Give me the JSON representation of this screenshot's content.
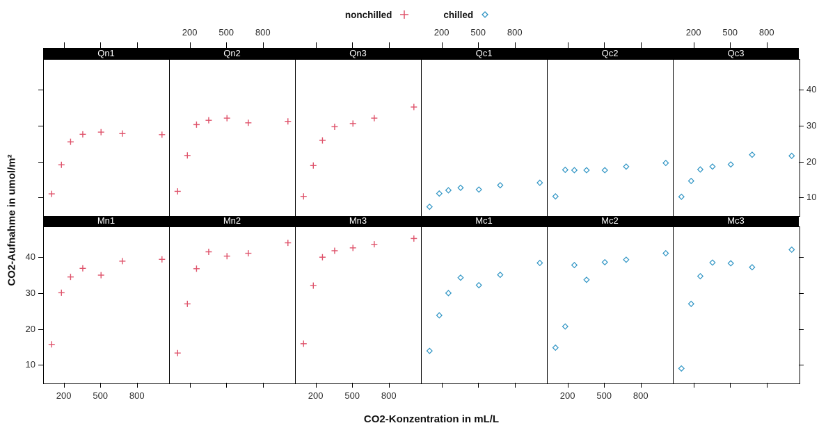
{
  "legend": {
    "items": [
      {
        "label": "nonchilled",
        "symbol": "plus",
        "color": "#DF536B"
      },
      {
        "label": "chilled",
        "symbol": "diamond",
        "color": "#2E94C4"
      }
    ]
  },
  "chart_data": {
    "type": "scatter",
    "title": "",
    "x_label": "CO2-Konzentration in mL/L",
    "y_label": "CO2-Aufnahme in umol/m²",
    "x_values": [
      95,
      175,
      250,
      350,
      500,
      675,
      1000
    ],
    "x_ticks": [
      200,
      500,
      800
    ],
    "y_ticks": [
      10,
      20,
      30,
      40
    ],
    "x_range": [
      30.6,
      1064
    ],
    "y_range": [
      5,
      48.6
    ],
    "grid": false,
    "legend_position": "top",
    "groups": {
      "nonchilled": {
        "symbol": "plus",
        "color": "#DF536B"
      },
      "chilled": {
        "symbol": "diamond",
        "color": "#2E94C4"
      }
    },
    "panels_top": [
      {
        "label": "Qn1",
        "group": "nonchilled",
        "uptake": [
          11.3,
          19.4,
          25.8,
          27.9,
          28.5,
          28.1,
          27.8
        ]
      },
      {
        "label": "Qn2",
        "group": "nonchilled",
        "uptake": [
          12.0,
          22.0,
          30.6,
          31.8,
          32.4,
          31.1,
          31.5
        ]
      },
      {
        "label": "Qn3",
        "group": "nonchilled",
        "uptake": [
          10.6,
          19.2,
          26.2,
          30.0,
          30.9,
          32.4,
          35.5
        ]
      },
      {
        "label": "Qc1",
        "group": "chilled",
        "uptake": [
          7.7,
          11.4,
          12.3,
          13.0,
          12.5,
          13.7,
          14.4
        ]
      },
      {
        "label": "Qc2",
        "group": "chilled",
        "uptake": [
          10.6,
          18.0,
          17.9,
          17.9,
          17.9,
          18.9,
          19.9
        ]
      },
      {
        "label": "Qc3",
        "group": "chilled",
        "uptake": [
          10.5,
          14.9,
          18.1,
          18.9,
          19.5,
          22.2,
          21.9
        ]
      }
    ],
    "panels_bottom": [
      {
        "label": "Mn1",
        "group": "nonchilled",
        "uptake": [
          16.0,
          30.4,
          34.8,
          37.2,
          35.3,
          39.2,
          39.7
        ]
      },
      {
        "label": "Mn2",
        "group": "nonchilled",
        "uptake": [
          13.6,
          27.3,
          37.1,
          41.8,
          40.6,
          41.4,
          44.3
        ]
      },
      {
        "label": "Mn3",
        "group": "nonchilled",
        "uptake": [
          16.2,
          32.4,
          40.3,
          42.1,
          42.9,
          43.9,
          45.5
        ]
      },
      {
        "label": "Mc1",
        "group": "chilled",
        "uptake": [
          14.2,
          24.1,
          30.3,
          34.6,
          32.5,
          35.4,
          38.7
        ]
      },
      {
        "label": "Mc2",
        "group": "chilled",
        "uptake": [
          15.1,
          21.0,
          38.1,
          34.0,
          38.9,
          39.6,
          41.4
        ]
      },
      {
        "label": "Mc3",
        "group": "chilled",
        "uptake": [
          9.3,
          27.3,
          35.0,
          38.8,
          38.6,
          37.5,
          42.4
        ]
      }
    ]
  }
}
